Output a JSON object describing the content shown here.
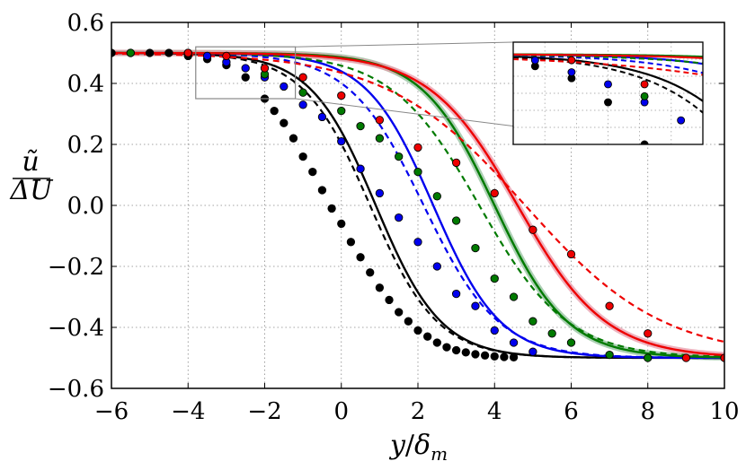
{
  "chart_data": {
    "type": "line",
    "title": "",
    "xlabel": "y/δ_m",
    "xlabel_parts": {
      "var": "y",
      "slash": "/",
      "sym": "δ",
      "sub": "m"
    },
    "ylabel": "ũ / ΔU",
    "ylabel_parts": {
      "num": "ũ",
      "den": "ΔU"
    },
    "xlim": [
      -6,
      10
    ],
    "ylim": [
      -0.6,
      0.6
    ],
    "grid": true,
    "grid_style": "dotted",
    "xticks": [
      -6,
      -4,
      -2,
      0,
      2,
      4,
      6,
      8,
      10
    ],
    "xtick_labels": [
      "−6",
      "−4",
      "−2",
      "0",
      "2",
      "4",
      "6",
      "8",
      "10"
    ],
    "yticks": [
      0.6,
      0.4,
      0.2,
      0.0,
      -0.2,
      -0.4,
      -0.6
    ],
    "ytick_labels": [
      "0.6",
      "0.4",
      "0.2",
      "0.0",
      "−0.2",
      "−0.4",
      "−0.6"
    ],
    "series": [
      {
        "name": "black",
        "color": "#000000",
        "solid_center": 0.9,
        "solid_width": 1.7,
        "dashed_center": 0.75,
        "dashed_width": 1.75,
        "band": false,
        "points_x": [
          -6,
          -5.5,
          -5,
          -4.5,
          -4,
          -3.5,
          -3,
          -2.5,
          -2,
          -1.75,
          -1.5,
          -1.25,
          -1,
          -0.75,
          -0.5,
          -0.25,
          0,
          0.25,
          0.5,
          0.75,
          1,
          1.25,
          1.5,
          1.75,
          2,
          2.25,
          2.5,
          2.75,
          3,
          3.25,
          3.5,
          3.75,
          4,
          4.25,
          4.5
        ],
        "points_y": [
          0.5,
          0.5,
          0.5,
          0.5,
          0.49,
          0.48,
          0.46,
          0.42,
          0.35,
          0.31,
          0.27,
          0.22,
          0.16,
          0.11,
          0.05,
          -0.01,
          -0.06,
          -0.12,
          -0.17,
          -0.22,
          -0.27,
          -0.31,
          -0.35,
          -0.38,
          -0.41,
          -0.43,
          -0.45,
          -0.465,
          -0.475,
          -0.482,
          -0.488,
          -0.492,
          -0.495,
          -0.497,
          -0.498
        ]
      },
      {
        "name": "blue",
        "color": "#0000ee",
        "solid_center": 2.4,
        "solid_width": 1.75,
        "dashed_center": 2.15,
        "dashed_width": 1.95,
        "band": false,
        "points_x": [
          -4,
          -3.5,
          -3,
          -2.5,
          -2,
          -1.5,
          -1,
          -0.5,
          0,
          0.5,
          1,
          1.5,
          2,
          2.5,
          3,
          3.5,
          4,
          4.5,
          5
        ],
        "points_y": [
          0.5,
          0.49,
          0.47,
          0.45,
          0.42,
          0.39,
          0.33,
          0.29,
          0.21,
          0.12,
          0.04,
          -0.04,
          -0.12,
          -0.2,
          -0.29,
          -0.33,
          -0.41,
          -0.45,
          -0.48
        ]
      },
      {
        "name": "green",
        "color": "#007a00",
        "solid_center": 4.0,
        "solid_width": 1.9,
        "dashed_center": 3.6,
        "dashed_width": 2.3,
        "band": true,
        "band_color": "#8fbf9a",
        "points_x": [
          -5.5,
          -2,
          -1,
          0,
          0.5,
          1,
          1.5,
          2,
          2.5,
          3,
          3.5,
          4,
          4.5,
          5,
          5.5,
          6,
          7,
          8
        ],
        "points_y": [
          0.5,
          0.43,
          0.37,
          0.31,
          0.26,
          0.22,
          0.16,
          0.11,
          0.03,
          -0.05,
          -0.14,
          -0.24,
          -0.3,
          -0.38,
          -0.42,
          -0.45,
          -0.49,
          -0.5
        ]
      },
      {
        "name": "red",
        "color": "#ee0000",
        "solid_center": 4.6,
        "solid_width": 2.3,
        "dashed_center": 4.8,
        "dashed_width": 3.6,
        "band": true,
        "band_color": "#e89aaa",
        "points_x": [
          -4,
          -3,
          -2,
          -1,
          0,
          1,
          2,
          3,
          4,
          5,
          6,
          7,
          8,
          9,
          10
        ],
        "points_y": [
          0.5,
          0.49,
          0.45,
          0.42,
          0.36,
          0.28,
          0.19,
          0.14,
          0.04,
          -0.08,
          -0.16,
          -0.33,
          -0.42,
          -0.5,
          -0.5
        ]
      }
    ],
    "inset": {
      "description": "zoom of main-plot region",
      "source_xlim": [
        -3.8,
        -1.2
      ],
      "source_ylim": [
        0.35,
        0.52
      ],
      "xlim": [
        -3.8,
        -1.2
      ],
      "ylim": [
        0.35,
        0.52
      ]
    }
  }
}
